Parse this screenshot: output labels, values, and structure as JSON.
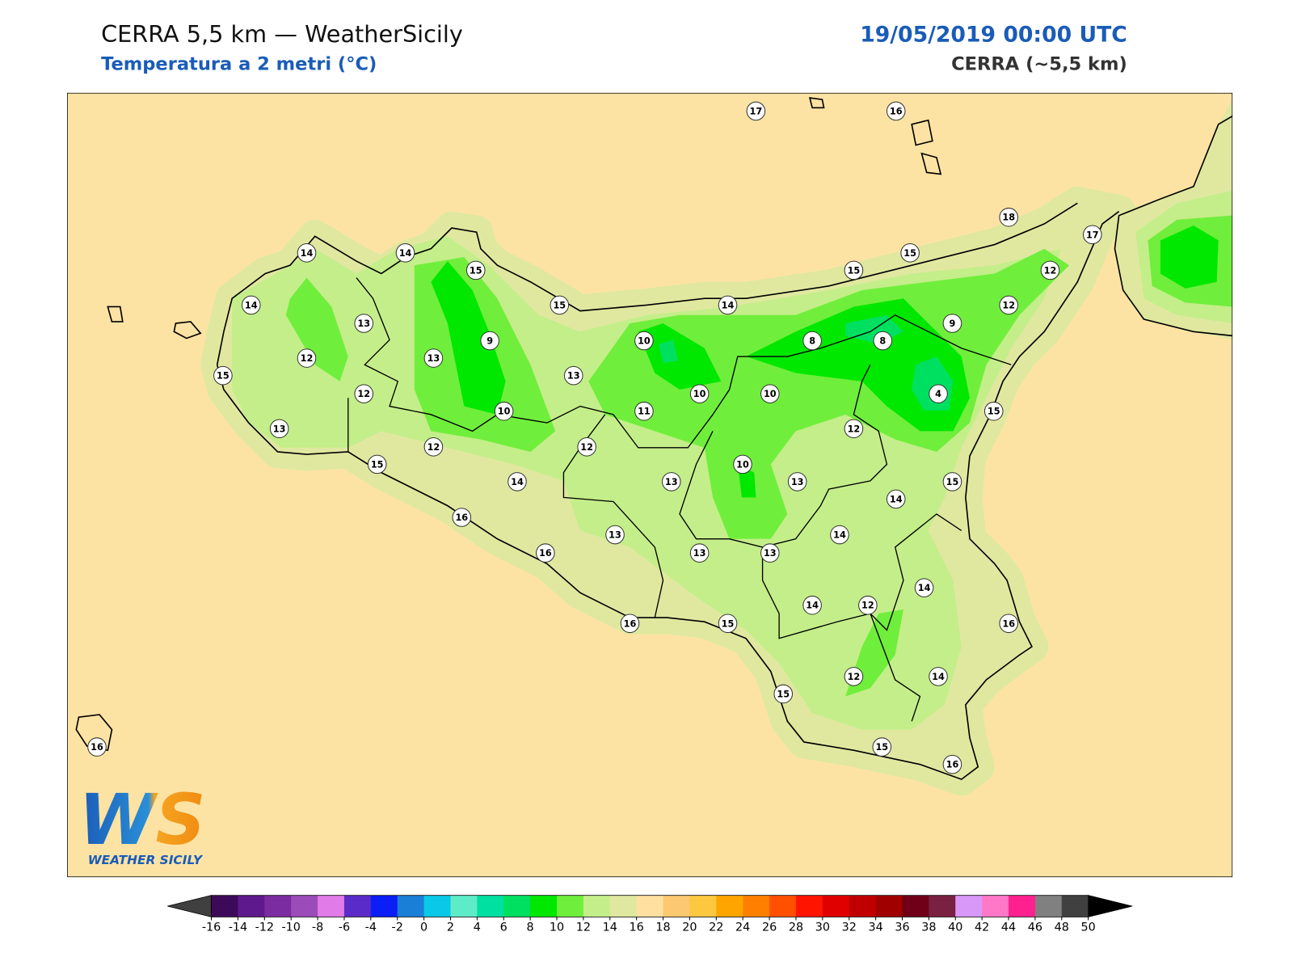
{
  "header": {
    "title": "CERRA 5,5 km — WeatherSicily",
    "subtitle": "Temperatura a 2 metri (°C)",
    "datetime": "19/05/2019 00:00 UTC",
    "model": "CERRA (~5,5 km)"
  },
  "stations": [
    17,
    16,
    18,
    17,
    14,
    14,
    15,
    15,
    15,
    12,
    14,
    15,
    14,
    12,
    13,
    9,
    9,
    10,
    8,
    8,
    12,
    13,
    15,
    13,
    10,
    10,
    4,
    12,
    10,
    11,
    15,
    13,
    12,
    12,
    12,
    15,
    10,
    14,
    13,
    13,
    15,
    14,
    16,
    13,
    14,
    16,
    13,
    13,
    14,
    14,
    12,
    16,
    15,
    16,
    12,
    14,
    15,
    15,
    16,
    16
  ],
  "colorbar": {
    "ticks": [
      -16,
      -14,
      -12,
      -10,
      -8,
      -6,
      -4,
      -2,
      0,
      2,
      4,
      6,
      8,
      10,
      12,
      14,
      16,
      18,
      20,
      22,
      24,
      26,
      28,
      30,
      32,
      34,
      36,
      38,
      40,
      42,
      44,
      46,
      48,
      50
    ],
    "colors": [
      "#3d0a5a",
      "#5e1a8c",
      "#7b2ca0",
      "#9b4cb8",
      "#e07be8",
      "#5a2bc8",
      "#0a1ef5",
      "#1a7fd6",
      "#0ac8e8",
      "#5eecc8",
      "#00e0a0",
      "#00e060",
      "#00e800",
      "#70ee3c",
      "#c4ee8a",
      "#e0e8a0",
      "#ffe0a0",
      "#fcc870",
      "#fcc840",
      "#ffa500",
      "#ff8000",
      "#ff5000",
      "#ff1400",
      "#e00000",
      "#c00000",
      "#a00000",
      "#700018",
      "#7a2040",
      "#d898f8",
      "#ff78c8",
      "#ff2090",
      "#808080",
      "#404040"
    ],
    "under_color": "#404040",
    "over_color": "#000000"
  },
  "logo": {
    "mark": "WS",
    "text": "WEATHER SICILY"
  }
}
